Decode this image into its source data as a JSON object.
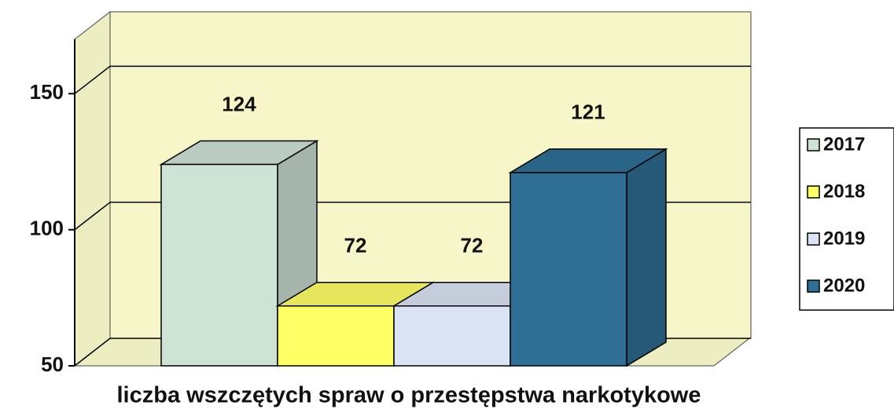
{
  "chart_data": {
    "type": "bar3d",
    "x_label": "liczba wszczętych spraw o przestępstwa narkotykowe",
    "series": [
      {
        "name": "2017",
        "color": "#cfe2d6",
        "values": [
          124
        ]
      },
      {
        "name": "2018",
        "color": "#ffff66",
        "values": [
          72
        ]
      },
      {
        "name": "2019",
        "color": "#dbe4f4",
        "values": [
          72
        ]
      },
      {
        "name": "2020",
        "color": "#2f6f95",
        "values": [
          121
        ]
      }
    ],
    "ylim": [
      50,
      170
    ],
    "yticks": [
      50,
      100,
      150
    ],
    "grid": true,
    "legend": "right"
  }
}
